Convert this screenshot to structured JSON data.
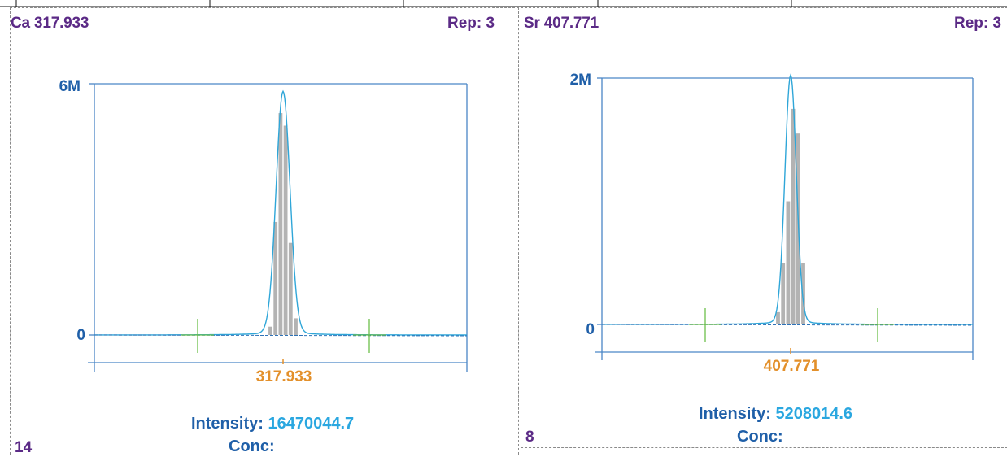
{
  "chart_data": [
    {
      "type": "line",
      "title": "Ca 317.933",
      "rep_label": "Rep: 3",
      "y_tick_labels": [
        "6M",
        "0"
      ],
      "center_label": "317.933",
      "intensity_label": "Intensity:",
      "intensity_value": "16470044.7",
      "conc_label": "Conc:",
      "panel_number": "14",
      "ylim": [
        -300000,
        6000000
      ],
      "peak_height": 5750000,
      "bar_values": [
        200000,
        2700000,
        5300000,
        5000000,
        2200000,
        400000
      ]
    },
    {
      "type": "line",
      "title": "Sr 407.771",
      "rep_label": "Rep: 3",
      "y_tick_labels": [
        "2M",
        "0"
      ],
      "center_label": "407.771",
      "intensity_label": "Intensity:",
      "intensity_value": "5208014.6",
      "conc_label": "Conc:",
      "panel_number": "8",
      "ylim": [
        -100000,
        2000000
      ],
      "peak_height": 2000000,
      "bar_values": [
        100000,
        500000,
        1000000,
        1750000,
        1550000,
        500000
      ]
    }
  ]
}
